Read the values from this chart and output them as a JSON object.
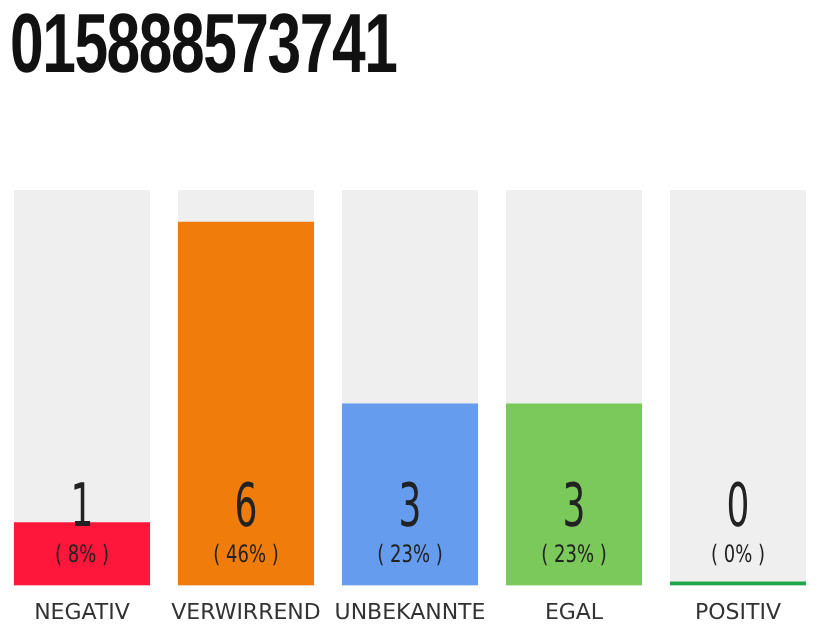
{
  "chart_data": {
    "type": "bar",
    "title": "015888573741",
    "categories": [
      "NEGATIV",
      "VERWIRREND",
      "UNBEKANNTE",
      "EGAL",
      "POSITIV"
    ],
    "values": [
      8,
      46,
      23,
      23,
      0
    ],
    "colors": [
      "#fe163b",
      "#f07d0b",
      "#659cee",
      "#7cc95b",
      "#1fa84a"
    ],
    "value_labels": [
      "( 8% )",
      "( 46% )",
      "( 23% )",
      "( 23% )",
      "( 0% )"
    ],
    "annotations": [
      "1",
      "6",
      "3",
      "3",
      "0"
    ],
    "tick_labels": "x",
    "grid": false,
    "legend": false
  }
}
